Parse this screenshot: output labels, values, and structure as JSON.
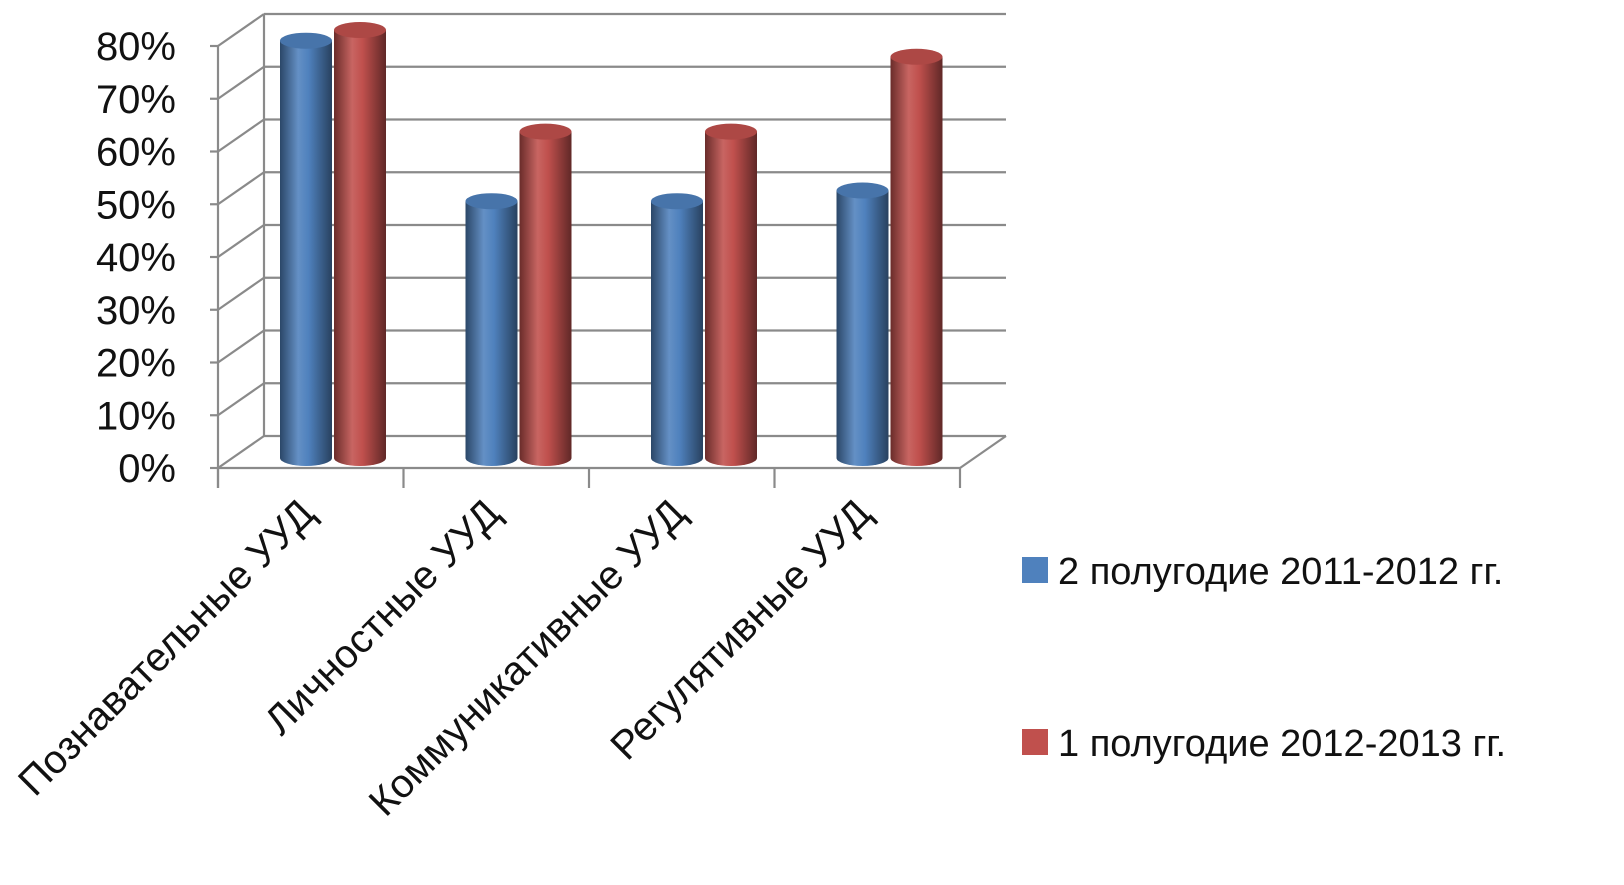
{
  "chart_data": {
    "type": "bar",
    "style": "3d-cylinder",
    "title": "",
    "xlabel": "",
    "ylabel": "",
    "ylim": [
      0,
      0.8
    ],
    "y_ticks": [
      "0%",
      "10%",
      "20%",
      "30%",
      "40%",
      "50%",
      "60%",
      "70%",
      "80%"
    ],
    "grid": true,
    "legend_position": "right",
    "categories": [
      "Познавательные УУД",
      "Личностные УУД",
      "Коммуникативные УУД",
      "Регулятивные УУД"
    ],
    "series": [
      {
        "name": "2 полугодие 2011-2012 гг.",
        "color": "#4f81bd",
        "values": [
          0.78,
          0.48,
          0.48,
          0.5
        ]
      },
      {
        "name": "1 полугодие 2012-2013 гг.",
        "color": "#c0504d",
        "values": [
          0.8,
          0.61,
          0.61,
          0.75
        ]
      }
    ]
  }
}
